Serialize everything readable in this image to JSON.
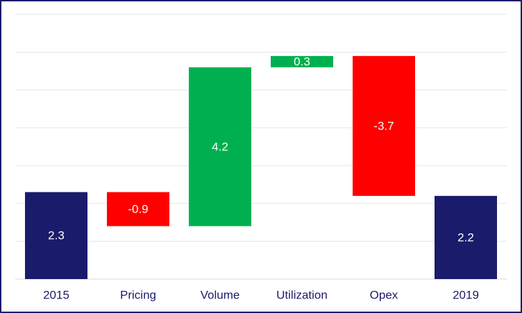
{
  "chart_data": {
    "type": "bar",
    "subtype": "waterfall",
    "title": "",
    "xlabel": "",
    "ylabel": "",
    "grid": true,
    "categories": [
      "2015",
      "Pricing",
      "Volume",
      "Utilization",
      "Opex",
      "2019"
    ],
    "bars": [
      {
        "category": "2015",
        "start": 0,
        "end": 2.3,
        "label": "2.3",
        "kind": "total"
      },
      {
        "category": "Pricing",
        "start": 2.3,
        "end": 1.4,
        "label": "-0.9",
        "kind": "decrease"
      },
      {
        "category": "Volume",
        "start": 1.4,
        "end": 5.6,
        "label": "4.2",
        "kind": "increase"
      },
      {
        "category": "Utilization",
        "start": 5.6,
        "end": 5.9,
        "label": "0.3",
        "kind": "increase"
      },
      {
        "category": "Opex",
        "start": 5.9,
        "end": 2.2,
        "label": "-3.7",
        "kind": "decrease"
      },
      {
        "category": "2019",
        "start": 0,
        "end": 2.2,
        "label": "2.2",
        "kind": "total"
      }
    ],
    "ylim": [
      0,
      7
    ],
    "gridlines": [
      0,
      1,
      2,
      3,
      4,
      5,
      6,
      7
    ],
    "colors": {
      "total": "#1b1b6b",
      "increase": "#00b050",
      "decrease": "#ff0000",
      "tick_label": "#1b1b6b",
      "grid": "#e6e6e6"
    }
  }
}
